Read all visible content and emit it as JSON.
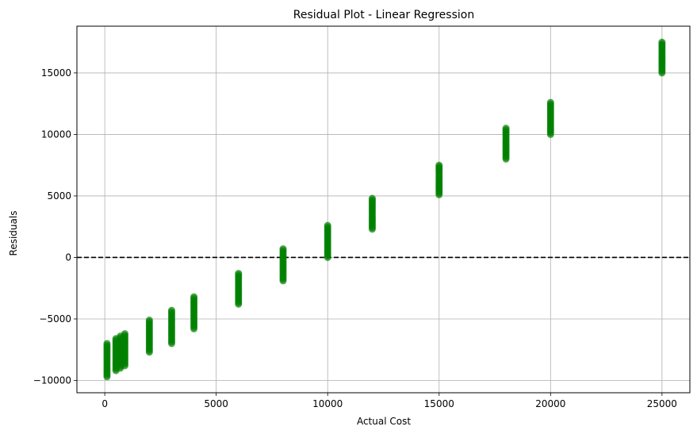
{
  "chart_data": {
    "type": "scatter",
    "title": "Residual Plot - Linear Regression",
    "xlabel": "Actual Cost",
    "ylabel": "Residuals",
    "xlim": [
      -1250,
      26250
    ],
    "ylim": [
      -11000,
      18800
    ],
    "xticks": [
      0,
      5000,
      10000,
      15000,
      20000,
      25000
    ],
    "yticks": [
      -10000,
      -5000,
      0,
      5000,
      10000,
      15000
    ],
    "grid": true,
    "reference_line": {
      "y": 0,
      "style": "dashed",
      "color": "#000000"
    },
    "marker_color": "#008000",
    "clusters": [
      {
        "x": 100,
        "y_min": -9700,
        "y_max": -7000
      },
      {
        "x": 500,
        "y_min": -9200,
        "y_max": -6600
      },
      {
        "x": 700,
        "y_min": -9000,
        "y_max": -6400
      },
      {
        "x": 900,
        "y_min": -8800,
        "y_max": -6200
      },
      {
        "x": 2000,
        "y_min": -7700,
        "y_max": -5100
      },
      {
        "x": 3000,
        "y_min": -7000,
        "y_max": -4300
      },
      {
        "x": 4000,
        "y_min": -5800,
        "y_max": -3200
      },
      {
        "x": 6000,
        "y_min": -3800,
        "y_max": -1300
      },
      {
        "x": 8000,
        "y_min": -1900,
        "y_max": 700
      },
      {
        "x": 10000,
        "y_min": 0,
        "y_max": 2600
      },
      {
        "x": 12000,
        "y_min": 2300,
        "y_max": 4800
      },
      {
        "x": 15000,
        "y_min": 5100,
        "y_max": 7500
      },
      {
        "x": 18000,
        "y_min": 8000,
        "y_max": 10500
      },
      {
        "x": 20000,
        "y_min": 10000,
        "y_max": 12600
      },
      {
        "x": 25000,
        "y_min": 15000,
        "y_max": 17500
      }
    ]
  }
}
